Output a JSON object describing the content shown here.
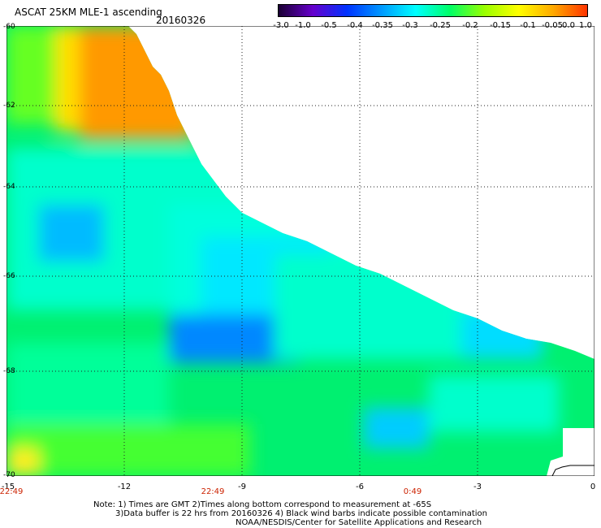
{
  "header": {
    "title": "ASCAT 25KM MLE-1 ascending",
    "date": "20160326"
  },
  "colorbar": {
    "ticks": [
      "-3.0",
      "-1.0",
      "-0.5",
      "-0.4",
      "-0.35",
      "-0.3",
      "-0.25",
      "-0.2",
      "-0.15",
      "-0.1",
      "-0.05",
      "0.0",
      "1.0"
    ],
    "colors": [
      "#1a0033",
      "#6600cc",
      "#0033ff",
      "#0099ff",
      "#00ffff",
      "#00ff66",
      "#99ff00",
      "#ffff00",
      "#ffaa00",
      "#ff3300"
    ]
  },
  "map": {
    "lat_labels": [
      "-60",
      "-62",
      "-64",
      "-66",
      "-68",
      "-70"
    ],
    "lon_labels": [
      "-15",
      "-12",
      "-9",
      "-6",
      "-3",
      "0"
    ],
    "time_labels": [
      "22:49",
      "22:49",
      "0:49"
    ]
  },
  "notes": {
    "line1": "Note: 1) Times are GMT 2)Times along bottom correspond to measurement at -65S",
    "line2": "3)Data buffer is 22 hrs from 20160326 4) Black wind barbs indicate possible contamination",
    "line3": "NOAA/NESDIS/Center for Satellite Applications and Research"
  }
}
